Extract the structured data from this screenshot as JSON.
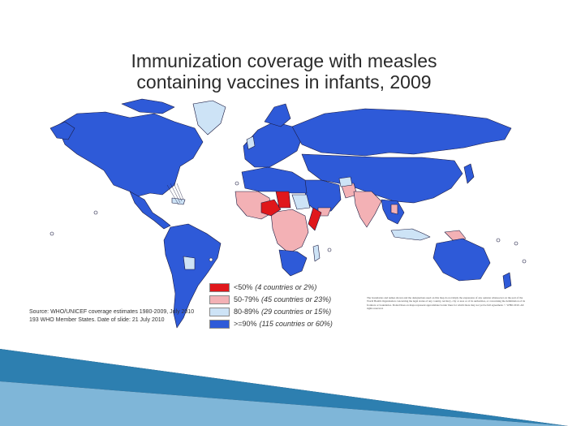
{
  "title": {
    "line1": "Immunization coverage with measles",
    "line2": "containing vaccines in infants, 2009"
  },
  "legend": [
    {
      "range": "<50%",
      "detail": "(4 countries or 2%)",
      "color": "#e0171b"
    },
    {
      "range": "50-79%",
      "detail": "(45 countries or 23%)",
      "color": "#f3b1b5"
    },
    {
      "range": "80-89%",
      "detail": "(29 countries or 15%)",
      "color": "#cde3f6"
    },
    {
      "range": ">=90%",
      "detail": "(115 countries or 60%)",
      "color": "#2e5ad8"
    }
  ],
  "source": {
    "line1": "Source: WHO/UNICEF coverage estimates 1980-2009, July 2010",
    "line2": "193 WHO Member States. Date of slide: 21 July 2010"
  },
  "disclaimer": "The boundaries and names shown and the designations used on this map do not imply the expression of any opinion whatsoever on the part of the World Health Organization concerning the legal status of any country, territory, city or area or of its authorities, or concerning the delimitation of its frontiers or boundaries. Dotted lines on maps represent approximate border lines for which there may not yet be full agreement. © WHO 2010. All rights reserved.",
  "colors": {
    "ocean": "#ffffff",
    "border": "#1a1a40",
    "wedge_dark": "#0b1a2e",
    "wedge_blue": "#2d7fb0"
  }
}
